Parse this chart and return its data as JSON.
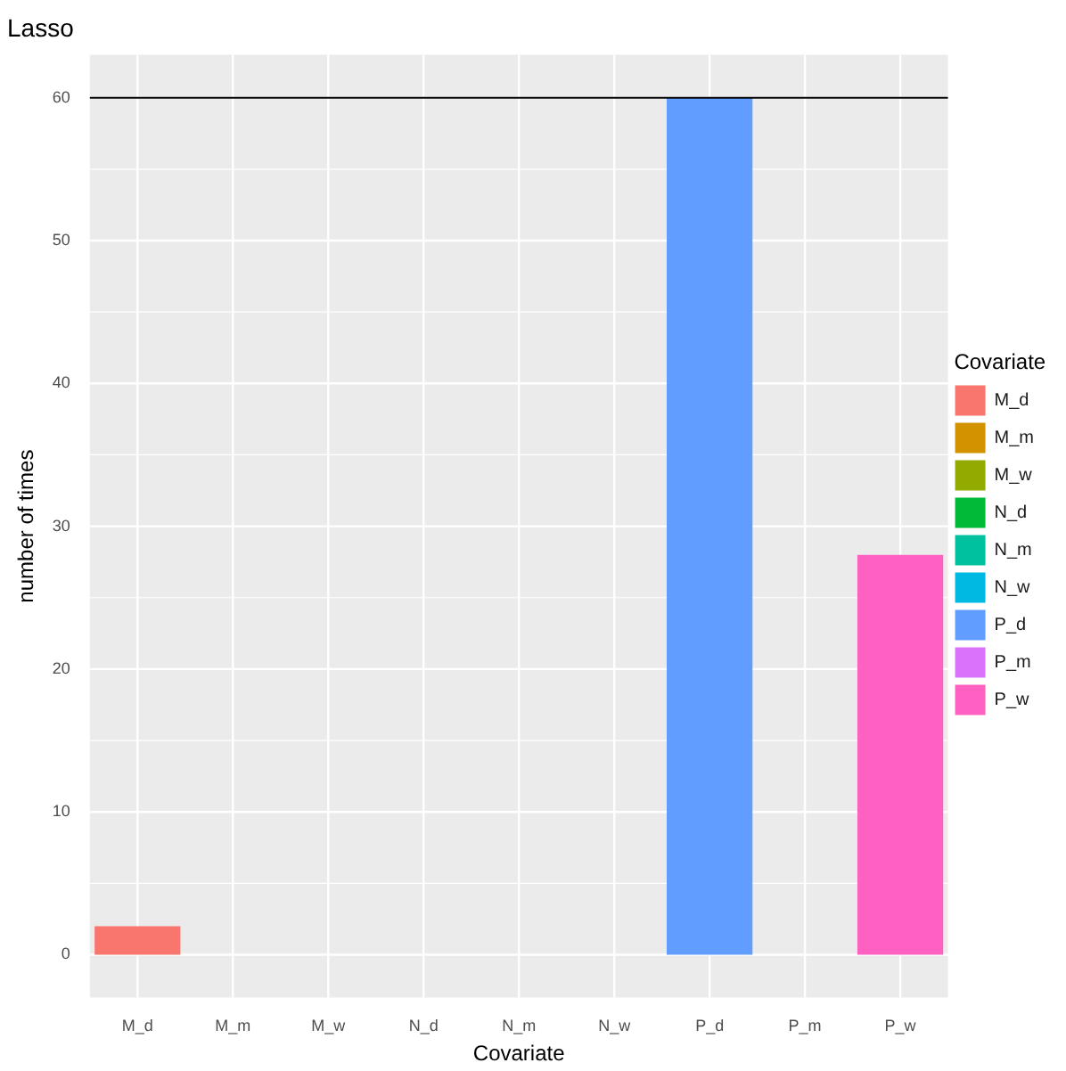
{
  "chart_data": {
    "type": "bar",
    "title": "Lasso",
    "xlabel": "Covariate",
    "ylabel": "number of times",
    "legend_title": "Covariate",
    "categories": [
      "M_d",
      "M_m",
      "M_w",
      "N_d",
      "N_m",
      "N_w",
      "P_d",
      "P_m",
      "P_w"
    ],
    "series": [
      {
        "name": "M_d",
        "color": "#f8766d",
        "values": [
          2,
          null,
          null,
          null,
          null,
          null,
          null,
          null,
          null
        ]
      },
      {
        "name": "M_m",
        "color": "#d39200",
        "values": [
          null,
          0,
          null,
          null,
          null,
          null,
          null,
          null,
          null
        ]
      },
      {
        "name": "M_w",
        "color": "#93aa00",
        "values": [
          null,
          null,
          0,
          null,
          null,
          null,
          null,
          null,
          null
        ]
      },
      {
        "name": "N_d",
        "color": "#00ba38",
        "values": [
          null,
          null,
          null,
          0,
          null,
          null,
          null,
          null,
          null
        ]
      },
      {
        "name": "N_m",
        "color": "#00c19f",
        "values": [
          null,
          null,
          null,
          null,
          0,
          null,
          null,
          null,
          null
        ]
      },
      {
        "name": "N_w",
        "color": "#00b9e3",
        "values": [
          null,
          null,
          null,
          null,
          null,
          0,
          null,
          null,
          null
        ]
      },
      {
        "name": "P_d",
        "color": "#619cff",
        "values": [
          null,
          null,
          null,
          null,
          null,
          null,
          60,
          null,
          null
        ]
      },
      {
        "name": "P_m",
        "color": "#db72fb",
        "values": [
          null,
          null,
          null,
          null,
          null,
          null,
          null,
          0,
          null
        ]
      },
      {
        "name": "P_w",
        "color": "#ff61c3",
        "values": [
          null,
          null,
          null,
          null,
          null,
          null,
          null,
          null,
          28
        ]
      }
    ],
    "ylim": [
      -3,
      63
    ],
    "yticks": [
      0,
      10,
      20,
      30,
      40,
      50,
      60
    ],
    "grid": true,
    "legend": "right",
    "ref_lines": [
      {
        "axis": "y",
        "value": 60,
        "color": "#000000"
      }
    ]
  }
}
